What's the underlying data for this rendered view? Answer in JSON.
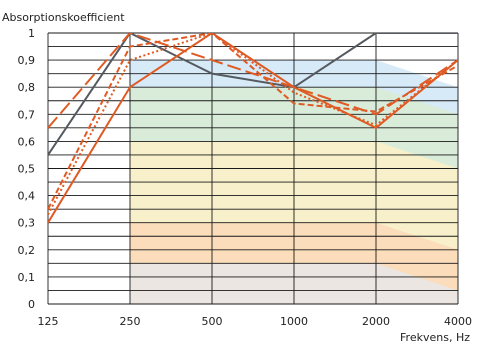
{
  "chart_data": {
    "type": "line",
    "ylabel": "Absorptionskoefficient",
    "xlabel": "Frekvens, Hz",
    "x_scale": "log",
    "categories": [
      "125",
      "250",
      "500",
      "1000",
      "2000",
      "4000"
    ],
    "y_ticks": [
      "0",
      "0,1",
      "0,2",
      "0,3",
      "0,4",
      "0,5",
      "0,6",
      "0,7",
      "0,8",
      "0,9",
      "1"
    ],
    "ylim": [
      0,
      1
    ],
    "grid": {
      "horizontal_step": 0.05,
      "vertical": true
    },
    "background_bands": [
      {
        "class": "A",
        "color": "#cfe6f7",
        "values": [
          null,
          0.9,
          0.9,
          0.9,
          0.9,
          0.8
        ]
      },
      {
        "class": "B",
        "color": "#d9ecd4",
        "values": [
          null,
          0.8,
          0.8,
          0.8,
          0.8,
          0.7
        ]
      },
      {
        "class": "C",
        "color": "#fbf1c7",
        "values": [
          null,
          0.6,
          0.6,
          0.6,
          0.6,
          0.5
        ]
      },
      {
        "class": "D",
        "color": "#fbd9b8",
        "values": [
          null,
          0.3,
          0.3,
          0.3,
          0.3,
          0.2
        ]
      },
      {
        "class": "E",
        "color": "#e8e8e8",
        "values": [
          null,
          0.15,
          0.15,
          0.15,
          0.15,
          0.05
        ]
      }
    ],
    "series": [
      {
        "color": "#555a60",
        "dash": "solid",
        "values": [
          0.55,
          1.0,
          0.85,
          0.8,
          1.0,
          1.0
        ]
      },
      {
        "color": "#e05a24",
        "dash": "solid",
        "values": [
          0.3,
          0.8,
          1.0,
          0.8,
          0.65,
          0.9
        ]
      },
      {
        "color": "#e05a24",
        "dash": "longdash",
        "values": [
          0.65,
          1.0,
          0.9,
          0.8,
          0.7,
          0.9
        ]
      },
      {
        "color": "#e05a24",
        "dash": "dash",
        "values": [
          0.35,
          0.95,
          1.0,
          0.74,
          0.71,
          0.88
        ]
      },
      {
        "color": "#e05a24",
        "dash": "dot",
        "values": [
          0.33,
          0.9,
          1.0,
          0.78,
          0.66,
          0.9
        ]
      }
    ]
  }
}
